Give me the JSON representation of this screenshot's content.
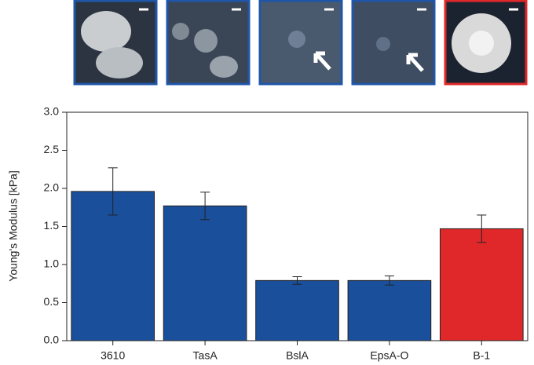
{
  "chart_data": {
    "type": "bar",
    "y_label": "Young's Modulus [kPa]",
    "categories": [
      "3610",
      "TasA",
      "BslA",
      "EpsA-O",
      "B-1"
    ],
    "values": [
      1.96,
      1.77,
      0.79,
      0.79,
      1.47
    ],
    "errors": [
      0.31,
      0.18,
      0.05,
      0.06,
      0.18
    ],
    "colors": [
      "#1a4f9c",
      "#1a4f9c",
      "#1a4f9c",
      "#1a4f9c",
      "#e0282a"
    ],
    "ylim": [
      0,
      3
    ],
    "yticks": [
      {
        "value": 0,
        "label": "0.0"
      },
      {
        "value": 0.5,
        "label": "0.5"
      },
      {
        "value": 1,
        "label": "1.0"
      },
      {
        "value": 1.5,
        "label": "1.5"
      },
      {
        "value": 2,
        "label": "2.0"
      },
      {
        "value": 2.5,
        "label": "2.5"
      },
      {
        "value": 3,
        "label": "3.0"
      }
    ],
    "grid": false
  }
}
